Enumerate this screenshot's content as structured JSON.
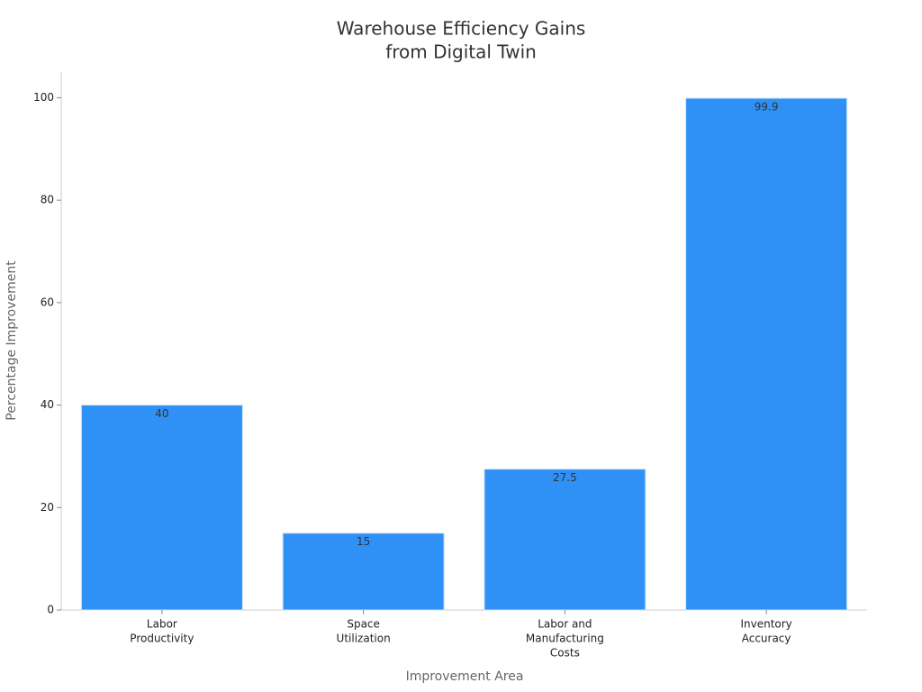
{
  "chart_data": {
    "type": "bar",
    "title": [
      "Warehouse Efficiency Gains",
      "from Digital Twin"
    ],
    "x_label": "Improvement Area",
    "y_label": "Percentage Improvement",
    "categories": [
      [
        "Labor",
        "Productivity"
      ],
      [
        "Space",
        "Utilization"
      ],
      [
        "Labor and",
        "Manufacturing",
        "Costs"
      ],
      [
        "Inventory",
        "Accuracy"
      ]
    ],
    "values": [
      40,
      15,
      27.5,
      99.9
    ],
    "color": "#2f91f5",
    "ylim": [
      0,
      105
    ],
    "yticks": [
      0,
      20,
      40,
      60,
      80,
      100
    ],
    "grid": false
  }
}
